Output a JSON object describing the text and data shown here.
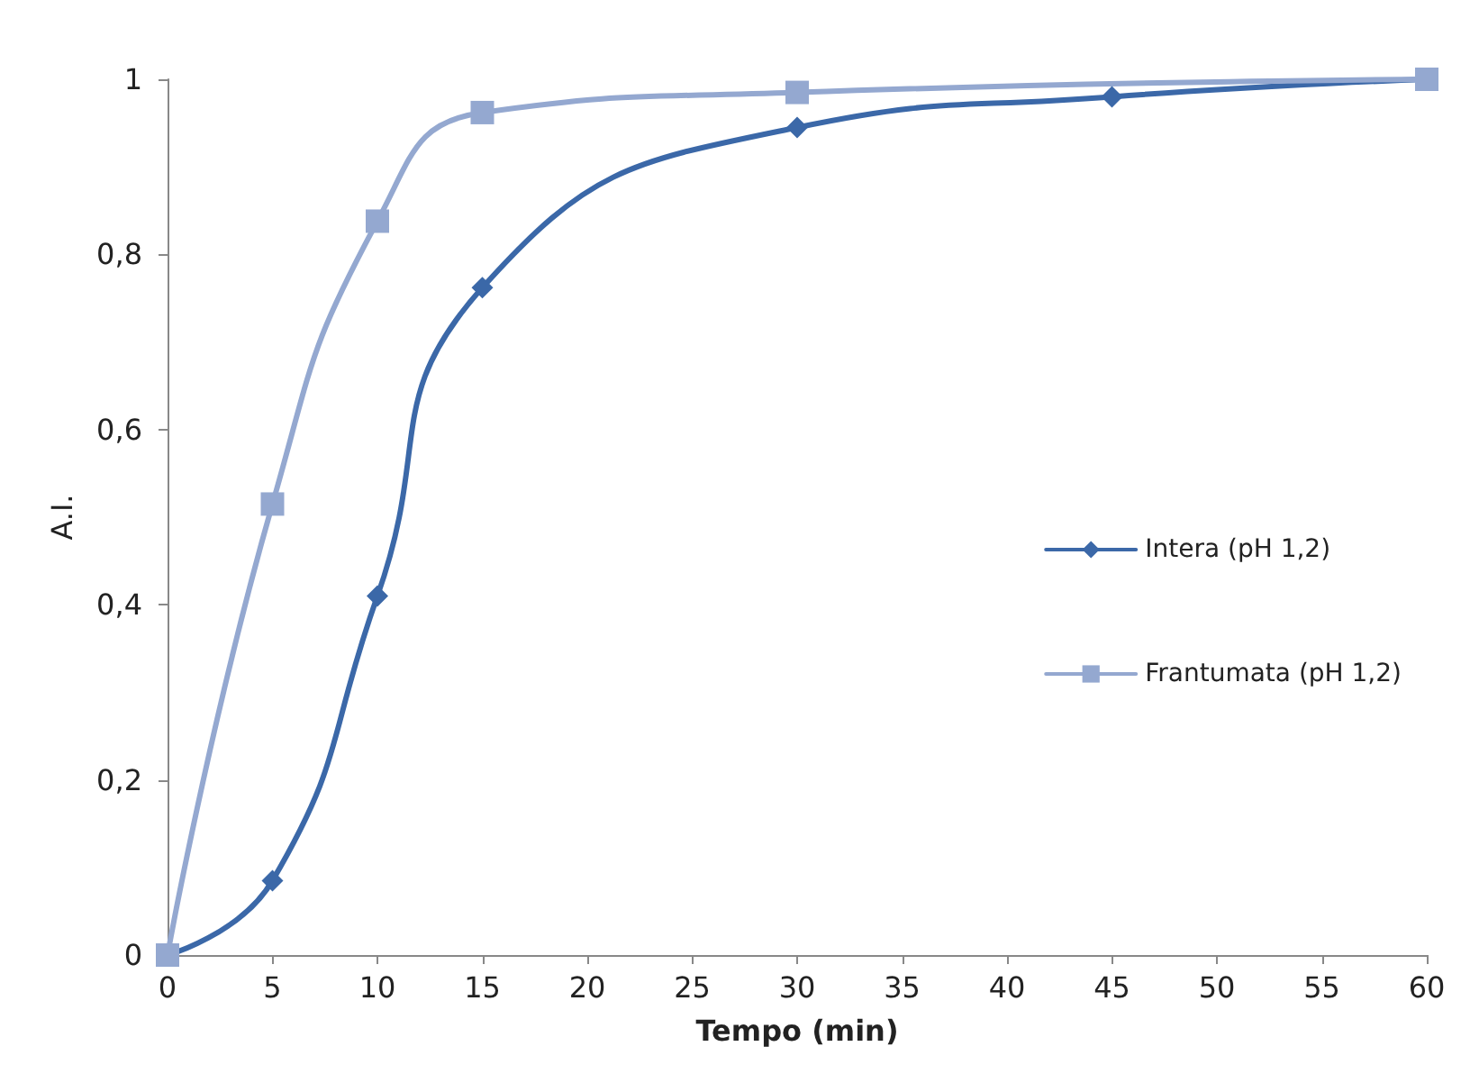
{
  "chart_data": {
    "type": "line",
    "xlabel": "Tempo (min)",
    "ylabel": "A.I.",
    "xlim": [
      0,
      60
    ],
    "xticks": [
      0,
      5,
      10,
      15,
      20,
      25,
      30,
      35,
      40,
      45,
      50,
      55,
      60
    ],
    "ylim": [
      0,
      1
    ],
    "yticks": [
      0,
      {
        "value": 0.2,
        "label": "0,2"
      },
      {
        "value": 0.4,
        "label": "0,4"
      },
      {
        "value": 0.6,
        "label": "0,6"
      },
      {
        "value": 0.8,
        "label": "0,8"
      },
      1
    ],
    "grid": false,
    "legend": "right",
    "series": [
      {
        "name": "Intera (pH 1,2)",
        "color": "#3b68a8",
        "marker": "diamond",
        "x": [
          0,
          5,
          10,
          15,
          30,
          45,
          60
        ],
        "values": [
          0,
          0.085,
          0.41,
          0.762,
          0.945,
          0.98,
          1
        ]
      },
      {
        "name": "Frantumata (pH 1,2)",
        "color": "#94a8d0",
        "marker": "square",
        "x": [
          0,
          5,
          10,
          15,
          30,
          60
        ],
        "values": [
          0,
          0.515,
          0.838,
          0.962,
          0.985,
          1
        ]
      }
    ]
  }
}
